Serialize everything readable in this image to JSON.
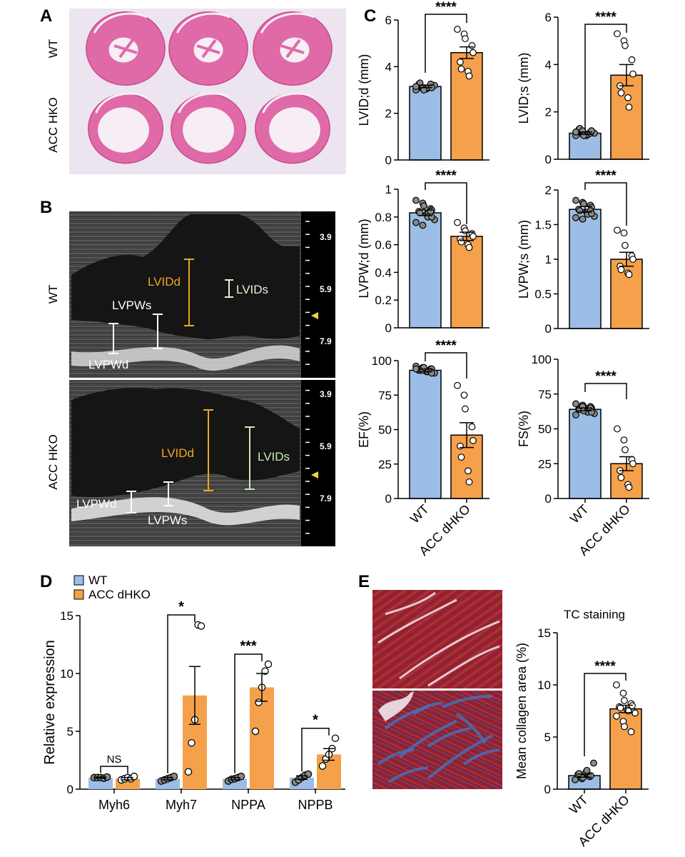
{
  "colors": {
    "wt": "#9bbde6",
    "ko": "#f5a04a",
    "he_pink": "#e06aa8",
    "he_bg": "#ece4ee",
    "echo_bg": "#1e1e1e",
    "scale_bg": "#000000",
    "tc_red": "#9a2530",
    "tc_blue": "#4a6fb5"
  },
  "panel_labels": {
    "a": "A",
    "b": "B",
    "c": "C",
    "d": "D",
    "e": "E"
  },
  "panel_a": {
    "row_labels": [
      "WT",
      "ACC HKO"
    ]
  },
  "panel_b": {
    "row_labels": [
      "WT",
      "ACC HKO"
    ],
    "scale_labels": [
      "3.9",
      "5.9",
      "7.9"
    ],
    "wt_annotations": {
      "lvidd": "LVIDd",
      "lvids": "LVIDs",
      "lvpws": "LVPWs",
      "lvpwd": "LVPWd"
    },
    "ko_annotations": {
      "lvidd": "LVIDd",
      "lvids": "LVIDs",
      "lvpws": "LVPWs",
      "lvpwd": "LVPWd"
    }
  },
  "panel_e": {
    "title": "TC staining"
  },
  "chart_data": [
    {
      "id": "lvidd",
      "type": "bar",
      "categories": [
        "WT",
        "ACC dHKO"
      ],
      "values": [
        3.15,
        4.6
      ],
      "errors": [
        0.05,
        0.25
      ],
      "ylabel": "LVID;d (mm)",
      "ylim": [
        0,
        6
      ],
      "yticks": [
        0,
        2,
        4,
        6
      ],
      "significance": "****",
      "points": [
        [
          3.0,
          3.05,
          3.1,
          3.15,
          3.2,
          3.25,
          3.3,
          3.05,
          3.1,
          3.2,
          3.15,
          3.1,
          3.0,
          3.25,
          3.1
        ],
        [
          5.6,
          5.4,
          5.2,
          4.9,
          4.6,
          4.2,
          3.9,
          3.8,
          3.6
        ]
      ]
    },
    {
      "id": "lvids",
      "type": "bar",
      "categories": [
        "WT",
        "ACC dHKO"
      ],
      "values": [
        1.1,
        3.55
      ],
      "errors": [
        0.05,
        0.45
      ],
      "ylabel": "LVID;s (mm)",
      "ylim": [
        0,
        6
      ],
      "yticks": [
        0,
        2,
        4,
        6
      ],
      "significance": "****",
      "points": [
        [
          1.0,
          1.05,
          1.1,
          1.15,
          1.2,
          1.25,
          1.3,
          1.0,
          1.05,
          1.1,
          1.15,
          1.2,
          1.0,
          1.1,
          1.2
        ],
        [
          5.3,
          5.0,
          4.8,
          4.2,
          3.6,
          3.1,
          2.8,
          2.6,
          2.2
        ]
      ]
    },
    {
      "id": "lvpwd",
      "type": "bar",
      "categories": [
        "WT",
        "ACC dHKO"
      ],
      "values": [
        0.83,
        0.66
      ],
      "errors": [
        0.02,
        0.03
      ],
      "ylabel": "LVPW;d (mm)",
      "ylim": [
        0,
        1.0
      ],
      "yticks": [
        0,
        0.2,
        0.4,
        0.6,
        0.8,
        1.0
      ],
      "significance": "****",
      "points": [
        [
          0.92,
          0.9,
          0.88,
          0.86,
          0.85,
          0.84,
          0.83,
          0.82,
          0.8,
          0.78,
          0.76,
          0.74,
          0.88,
          0.84,
          0.8
        ],
        [
          0.76,
          0.72,
          0.7,
          0.68,
          0.66,
          0.64,
          0.62,
          0.6,
          0.58
        ]
      ]
    },
    {
      "id": "lvpws",
      "type": "bar",
      "categories": [
        "WT",
        "ACC dHKO"
      ],
      "values": [
        1.72,
        1.0
      ],
      "errors": [
        0.04,
        0.1
      ],
      "ylabel": "LVPW;s (mm)",
      "ylim": [
        0,
        2.0
      ],
      "yticks": [
        0,
        0.5,
        1.0,
        1.5,
        2.0
      ],
      "significance": "****",
      "points": [
        [
          1.85,
          1.82,
          1.8,
          1.78,
          1.75,
          1.72,
          1.7,
          1.68,
          1.65,
          1.62,
          1.6,
          1.58,
          1.8,
          1.7,
          1.66
        ],
        [
          1.42,
          1.38,
          1.2,
          1.05,
          1.0,
          0.9,
          0.85,
          0.8,
          0.78
        ]
      ]
    },
    {
      "id": "ef",
      "type": "bar",
      "categories": [
        "WT",
        "ACC dHKO"
      ],
      "values": [
        93,
        46
      ],
      "errors": [
        1,
        9
      ],
      "ylabel": "EF(%)",
      "ylim": [
        0,
        100
      ],
      "yticks": [
        0,
        25,
        50,
        75,
        100
      ],
      "significance": "****",
      "points": [
        [
          96,
          95,
          95,
          94,
          94,
          93,
          93,
          92,
          92,
          91,
          94,
          93,
          95,
          92,
          91
        ],
        [
          82,
          75,
          65,
          52,
          42,
          38,
          30,
          20,
          12
        ]
      ]
    },
    {
      "id": "fs",
      "type": "bar",
      "categories": [
        "WT",
        "ACC dHKO"
      ],
      "values": [
        64,
        25
      ],
      "errors": [
        1,
        5
      ],
      "ylabel": "FS(%)",
      "ylim": [
        0,
        100
      ],
      "yticks": [
        0,
        25,
        50,
        75,
        100
      ],
      "significance": "****",
      "points": [
        [
          68,
          67,
          66,
          66,
          65,
          64,
          64,
          63,
          62,
          61,
          60,
          66,
          63,
          65,
          62
        ],
        [
          50,
          42,
          35,
          28,
          25,
          20,
          15,
          10,
          8
        ]
      ]
    },
    {
      "id": "expr",
      "type": "bar",
      "categories": [
        "Myh6",
        "Myh7",
        "NPPA",
        "NPPB"
      ],
      "ylabel": "Relative expression",
      "ylim": [
        0,
        15
      ],
      "yticks": [
        0,
        5,
        10,
        15
      ],
      "legend": [
        "WT",
        "ACC dHKO"
      ],
      "legend_position": "top-left",
      "series": [
        {
          "name": "WT",
          "values": [
            1.0,
            0.9,
            0.9,
            1.0
          ],
          "errors": [
            0.05,
            0.1,
            0.1,
            0.15
          ],
          "points": [
            [
              1.0,
              1.0,
              1.0,
              0.95,
              1.05
            ],
            [
              0.7,
              0.8,
              0.9,
              1.0,
              1.1
            ],
            [
              0.7,
              0.85,
              0.9,
              1.0,
              1.1
            ],
            [
              0.6,
              0.8,
              1.0,
              1.2,
              1.3
            ]
          ]
        },
        {
          "name": "ACC dHKO",
          "values": [
            0.9,
            8.1,
            8.8,
            3.0
          ],
          "errors": [
            0.1,
            2.5,
            1.2,
            0.5
          ],
          "points": [
            [
              0.8,
              0.9,
              1.0,
              0.9,
              1.1
            ],
            [
              1.5,
              4.0,
              6.0,
              14.2,
              14.1
            ],
            [
              5.0,
              7.5,
              8.8,
              10.2,
              10.8
            ],
            [
              2.0,
              2.6,
              3.0,
              3.5,
              4.4
            ]
          ]
        }
      ],
      "significance": [
        "NS",
        "*",
        "***",
        "*"
      ]
    },
    {
      "id": "tc",
      "type": "bar",
      "categories": [
        "WT",
        "ACC dHKO"
      ],
      "values": [
        1.3,
        7.7
      ],
      "errors": [
        0.15,
        0.35
      ],
      "ylabel": "Mean collagen area (%)",
      "ylim": [
        0,
        15
      ],
      "yticks": [
        0,
        5,
        10,
        15
      ],
      "significance": "****",
      "points": [
        [
          0.9,
          1.0,
          1.1,
          1.2,
          1.3,
          1.4,
          1.5,
          1.6,
          1.8,
          2.5
        ],
        [
          10.0,
          9.2,
          8.5,
          8.2,
          8.0,
          7.9,
          7.8,
          7.6,
          7.5,
          7.3,
          7.0,
          6.5,
          6.0,
          5.5
        ]
      ]
    }
  ]
}
